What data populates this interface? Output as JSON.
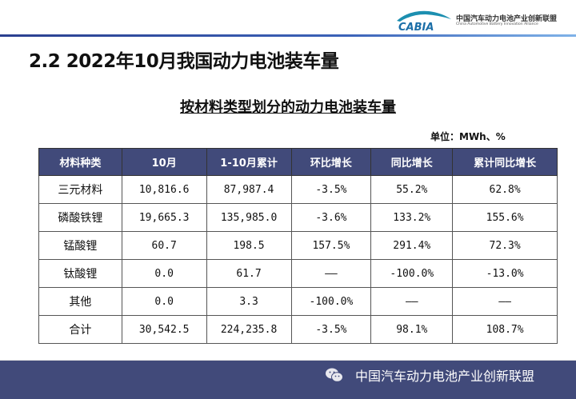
{
  "header": {
    "logo_text": "CABIA",
    "org_name_cn": "中国汽车动力电池产业创新联盟",
    "org_name_en": "China Automotive Battery Innovation Alliance",
    "accent_color": "#2a3f8f"
  },
  "slide": {
    "title": "2.2  2022年10月我国动力电池装车量",
    "subtitle": "按材料类型划分的动力电池装车量",
    "unit": "单位：MWh、%"
  },
  "table": {
    "header_color": "#414a7a",
    "columns": [
      "材料种类",
      "10月",
      "1-10月累计",
      "环比增长",
      "同比增长",
      "累计同比增长"
    ],
    "rows": [
      [
        "三元材料",
        "10,816.6",
        "87,987.4",
        "-3.5%",
        "55.2%",
        "62.8%"
      ],
      [
        "磷酸铁锂",
        "19,665.3",
        "135,985.0",
        "-3.6%",
        "133.2%",
        "155.6%"
      ],
      [
        "锰酸锂",
        "60.7",
        "198.5",
        "157.5%",
        "291.4%",
        "72.3%"
      ],
      [
        "钛酸锂",
        "0.0",
        "61.7",
        "——",
        "-100.0%",
        "-13.0%"
      ],
      [
        "其他",
        "0.0",
        "3.3",
        "-100.0%",
        "——",
        "——"
      ],
      [
        "合计",
        "30,542.5",
        "224,235.8",
        "-3.5%",
        "98.1%",
        "108.7%"
      ]
    ]
  },
  "footer": {
    "icon": "wechat-icon",
    "text": "中国汽车动力电池产业创新联盟"
  }
}
